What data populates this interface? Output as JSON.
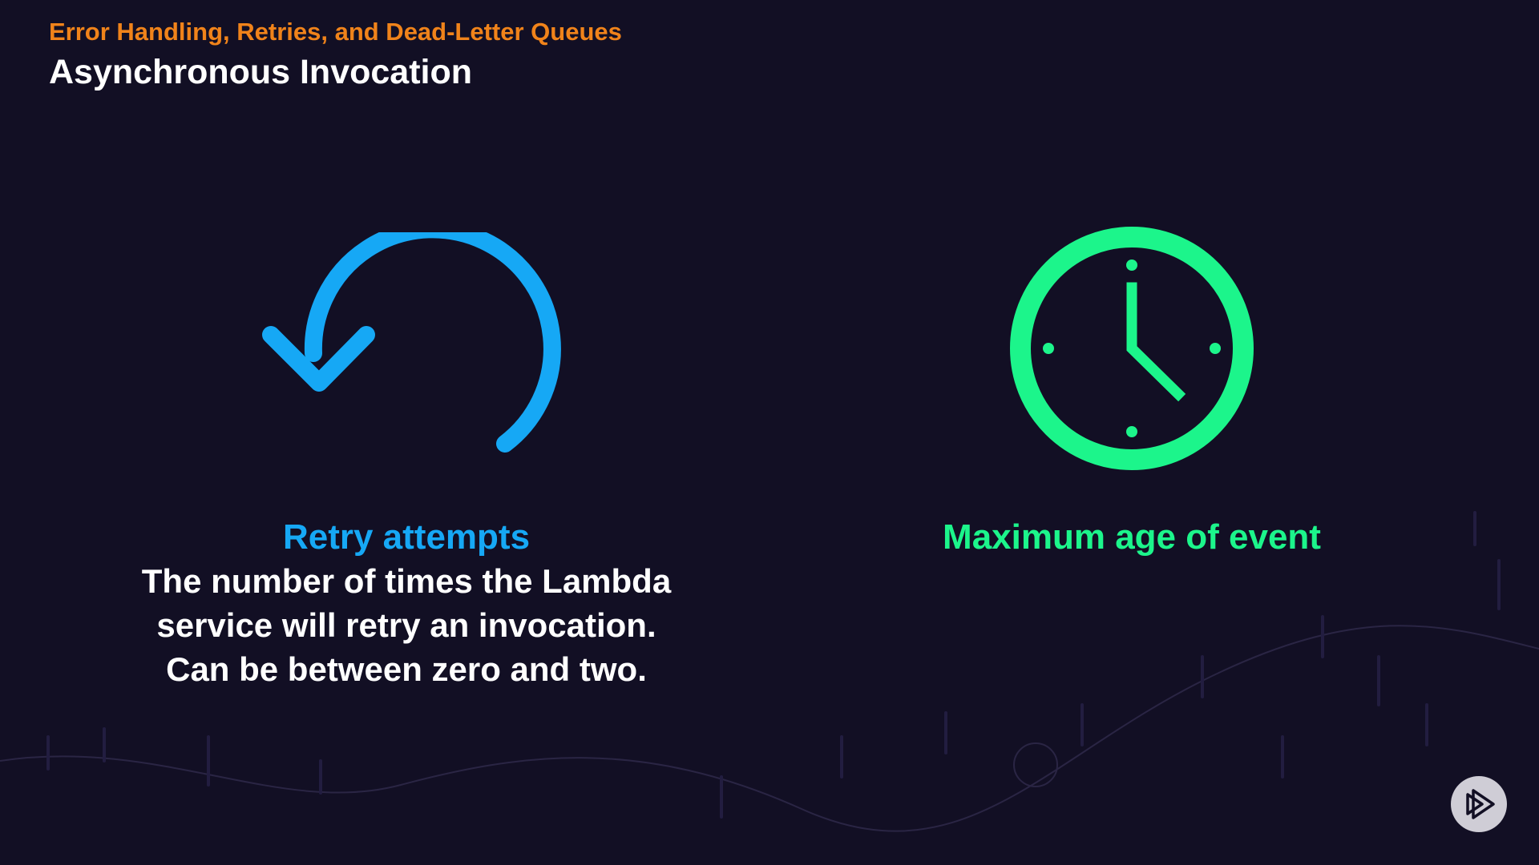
{
  "header": {
    "subtitle": "Error Handling, Retries, and Dead-Letter Queues",
    "title": "Asynchronous Invocation"
  },
  "colors": {
    "subtitle": "#f0831a",
    "retry": "#16a8f5",
    "max_age": "#1cf58b",
    "background": "#120f24"
  },
  "retry": {
    "icon": "retry-arrow-icon",
    "heading": "Retry attempts",
    "lines": [
      "The number of times the Lambda",
      "service will retry an invocation.",
      "Can be between zero and two."
    ]
  },
  "max_age": {
    "icon": "clock-icon",
    "heading": "Maximum age of event"
  },
  "logo": {
    "icon": "play-logo-icon"
  }
}
